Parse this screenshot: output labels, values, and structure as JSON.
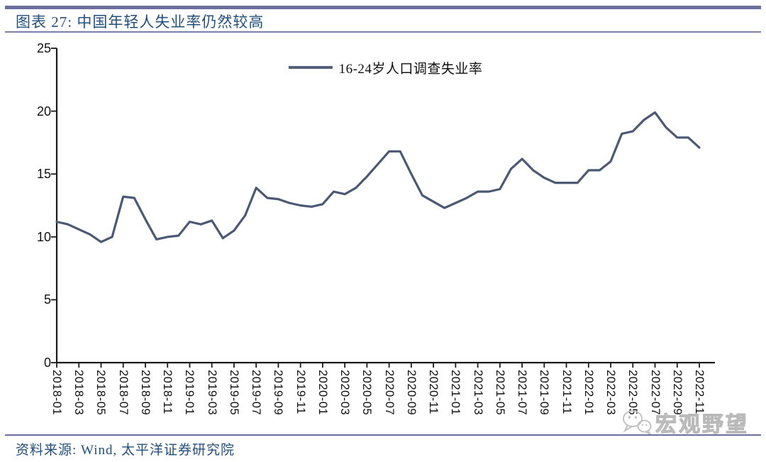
{
  "header": {
    "title": "图表 27: 中国年轻人失业率仍然较高"
  },
  "legend": {
    "label": "16-24岁人口调查失业率"
  },
  "watermark": {
    "label": "宏观野望",
    "icon": "wechat-icon"
  },
  "footer": {
    "source": "资料来源: Wind, 太平洋证券研究院"
  },
  "colors": {
    "series_line": "#4b5975",
    "legend_marker": "#55617c",
    "header_rule": "#6a6f9d",
    "title_text": "#234f7d",
    "axis": "#1a1a1a",
    "watermark": "#c6c6c6"
  },
  "chart_data": {
    "type": "line",
    "title": "图表 27: 中国年轻人失业率仍然较高",
    "xlabel": "",
    "ylabel": "",
    "ylim": [
      0,
      25
    ],
    "yticks": [
      0,
      5,
      10,
      15,
      20,
      25
    ],
    "xtick_every": 2,
    "grid": false,
    "legend_position": "top-center",
    "x": [
      "2018-01",
      "2018-02",
      "2018-03",
      "2018-04",
      "2018-05",
      "2018-06",
      "2018-07",
      "2018-08",
      "2018-09",
      "2018-10",
      "2018-11",
      "2018-12",
      "2019-01",
      "2019-02",
      "2019-03",
      "2019-04",
      "2019-05",
      "2019-06",
      "2019-07",
      "2019-08",
      "2019-09",
      "2019-10",
      "2019-11",
      "2019-12",
      "2020-01",
      "2020-02",
      "2020-03",
      "2020-04",
      "2020-05",
      "2020-06",
      "2020-07",
      "2020-08",
      "2020-09",
      "2020-10",
      "2020-11",
      "2020-12",
      "2021-01",
      "2021-02",
      "2021-03",
      "2021-04",
      "2021-05",
      "2021-06",
      "2021-07",
      "2021-08",
      "2021-09",
      "2021-10",
      "2021-11",
      "2021-12",
      "2022-01",
      "2022-02",
      "2022-03",
      "2022-04",
      "2022-05",
      "2022-06",
      "2022-07",
      "2022-08",
      "2022-09",
      "2022-10",
      "2022-11"
    ],
    "series": [
      {
        "name": "16-24岁人口调查失业率",
        "values": [
          11.2,
          11.0,
          10.6,
          10.2,
          9.6,
          10.0,
          13.2,
          13.1,
          11.4,
          9.8,
          10.0,
          10.1,
          11.2,
          11.0,
          11.3,
          9.9,
          10.5,
          11.7,
          13.9,
          13.1,
          13.0,
          12.7,
          12.5,
          12.4,
          12.6,
          13.6,
          13.4,
          13.9,
          14.8,
          15.8,
          16.8,
          16.8,
          15.0,
          13.3,
          12.8,
          12.3,
          12.7,
          13.1,
          13.6,
          13.6,
          13.8,
          15.4,
          16.2,
          15.3,
          14.7,
          14.3,
          14.3,
          14.3,
          15.3,
          15.3,
          16.0,
          18.2,
          18.4,
          19.3,
          19.9,
          18.7,
          17.9,
          17.9,
          17.1
        ]
      }
    ]
  }
}
